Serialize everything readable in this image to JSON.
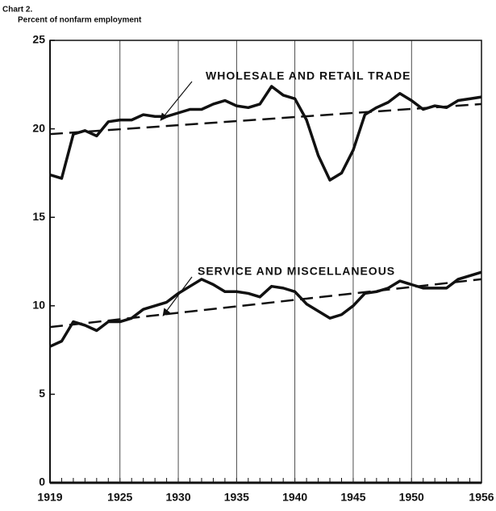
{
  "chart_data": {
    "type": "line",
    "title": "Chart 2.",
    "y_label": "Percent of nonfarm employment",
    "x": [
      1919,
      1920,
      1921,
      1922,
      1923,
      1924,
      1925,
      1926,
      1927,
      1928,
      1929,
      1930,
      1931,
      1932,
      1933,
      1934,
      1935,
      1936,
      1937,
      1938,
      1939,
      1940,
      1941,
      1942,
      1943,
      1944,
      1945,
      1946,
      1947,
      1948,
      1949,
      1950,
      1951,
      1952,
      1953,
      1954,
      1955,
      1956
    ],
    "series": [
      {
        "name": "WHOLESALE AND RETAIL TRADE",
        "color": "#111111",
        "values": [
          17.4,
          17.2,
          19.7,
          19.9,
          19.6,
          20.4,
          20.5,
          20.5,
          20.8,
          20.7,
          20.7,
          20.9,
          21.1,
          21.1,
          21.4,
          21.6,
          21.3,
          21.2,
          21.4,
          22.4,
          21.9,
          21.7,
          20.5,
          18.5,
          17.1,
          17.5,
          18.8,
          20.8,
          21.2,
          21.5,
          22.0,
          21.6,
          21.1,
          21.3,
          21.2,
          21.6,
          21.7,
          21.8
        ],
        "trend": {
          "x": [
            1919,
            1956
          ],
          "values": [
            19.7,
            21.4
          ]
        }
      },
      {
        "name": "SERVICE AND MISCELLANEOUS",
        "color": "#111111",
        "values": [
          7.7,
          8.0,
          9.1,
          8.9,
          8.6,
          9.1,
          9.1,
          9.3,
          9.8,
          10.0,
          10.2,
          10.7,
          11.1,
          11.5,
          11.2,
          10.8,
          10.8,
          10.7,
          10.5,
          11.1,
          11.0,
          10.8,
          10.1,
          9.7,
          9.3,
          9.5,
          10.0,
          10.7,
          10.8,
          11.0,
          11.4,
          11.2,
          11.0,
          11.0,
          11.0,
          11.5,
          11.7,
          11.9
        ],
        "trend": {
          "x": [
            1919,
            1956
          ],
          "values": [
            8.8,
            11.5
          ]
        }
      }
    ],
    "xlim": [
      1919,
      1956
    ],
    "xticks": [
      1919,
      1925,
      1930,
      1935,
      1940,
      1945,
      1950,
      1956
    ],
    "ylim": [
      0,
      25
    ],
    "yticks": [
      0,
      5,
      10,
      15,
      20,
      25
    ],
    "grid": "x"
  }
}
